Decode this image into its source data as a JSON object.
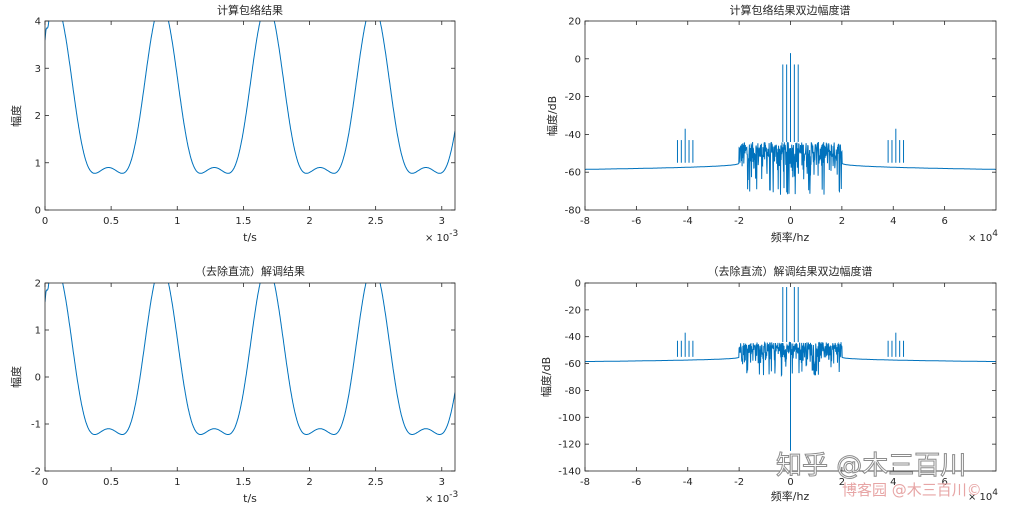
{
  "chart_data": [
    {
      "type": "line",
      "title": "计算包络结果",
      "xlabel": "t/s",
      "ylabel": "幅度",
      "x_exponent_label": "× 10",
      "x_exponent": "-3",
      "xlim": [
        0,
        3.1
      ],
      "ylim": [
        0,
        4
      ],
      "xticks": [
        0,
        0.5,
        1,
        1.5,
        2,
        2.5,
        3
      ],
      "yticks": [
        0,
        1,
        2,
        3,
        4
      ],
      "signal": {
        "offset": 2.0,
        "main_amp": 1.73,
        "main_period_ms": 0.8,
        "peak_ms": 0.88,
        "second_amp": 0.63,
        "second_period_ms": 0.4
      },
      "line_color": "#0072BD"
    },
    {
      "type": "line",
      "title": "计算包络结果双边幅度谱",
      "xlabel": "频率/hz",
      "ylabel": "幅度/dB",
      "x_exponent_label": "× 10",
      "x_exponent": "4",
      "xlim": [
        -8,
        8
      ],
      "ylim": [
        -80,
        20
      ],
      "xticks": [
        -8,
        -6,
        -4,
        -2,
        0,
        2,
        4,
        6
      ],
      "yticks": [
        -80,
        -60,
        -40,
        -20,
        0,
        20
      ],
      "spikes": [
        {
          "x": 0,
          "y": 3
        },
        {
          "x": -0.15,
          "y": -3
        },
        {
          "x": 0.15,
          "y": -3
        },
        {
          "x": -0.3,
          "y": -3
        },
        {
          "x": 0.3,
          "y": -3
        },
        {
          "x": -4.1,
          "y": -37
        },
        {
          "x": -4.25,
          "y": -43
        },
        {
          "x": -3.95,
          "y": -43
        },
        {
          "x": -4.4,
          "y": -43
        },
        {
          "x": -3.8,
          "y": -43
        },
        {
          "x": 4.1,
          "y": -37
        },
        {
          "x": 3.95,
          "y": -43
        },
        {
          "x": 4.25,
          "y": -43
        },
        {
          "x": 3.8,
          "y": -43
        },
        {
          "x": 4.4,
          "y": -43
        }
      ],
      "baseline": {
        "edge_level": -58.5,
        "inner_level": -55,
        "noise_top": -44,
        "noise_bottom": -68,
        "band_edge": 2
      },
      "line_color": "#0072BD"
    },
    {
      "type": "line",
      "title": "（去除直流）解调结果",
      "xlabel": "t/s",
      "ylabel": "幅度",
      "x_exponent_label": "× 10",
      "x_exponent": "-3",
      "xlim": [
        0,
        3.1
      ],
      "ylim": [
        -2,
        2
      ],
      "xticks": [
        0,
        0.5,
        1,
        1.5,
        2,
        2.5,
        3
      ],
      "yticks": [
        -2,
        -1,
        0,
        1,
        2
      ],
      "signal": {
        "offset": 0.0,
        "main_amp": 1.73,
        "main_period_ms": 0.8,
        "peak_ms": 0.88,
        "second_amp": 0.63,
        "second_period_ms": 0.4
      },
      "line_color": "#0072BD"
    },
    {
      "type": "line",
      "title": "（去除直流）解调结果双边幅度谱",
      "xlabel": "频率/hz",
      "ylabel": "幅度/dB",
      "x_exponent_label": "× 10",
      "x_exponent": "4",
      "xlim": [
        -8,
        8
      ],
      "ylim": [
        -140,
        0
      ],
      "xticks": [
        -8,
        -6,
        -4,
        -2,
        0,
        2,
        4,
        6
      ],
      "yticks": [
        -140,
        -120,
        -100,
        -80,
        -60,
        -40,
        -20,
        0
      ],
      "spikes": [
        {
          "x": -0.15,
          "y": -3
        },
        {
          "x": 0.15,
          "y": -3
        },
        {
          "x": -0.3,
          "y": -3
        },
        {
          "x": 0.3,
          "y": -3
        },
        {
          "x": 0,
          "y": -125
        },
        {
          "x": -4.1,
          "y": -37
        },
        {
          "x": -4.25,
          "y": -43
        },
        {
          "x": -3.95,
          "y": -43
        },
        {
          "x": -4.4,
          "y": -43
        },
        {
          "x": -3.8,
          "y": -43
        },
        {
          "x": 4.1,
          "y": -37
        },
        {
          "x": 3.95,
          "y": -43
        },
        {
          "x": 4.25,
          "y": -43
        },
        {
          "x": 3.8,
          "y": -43
        },
        {
          "x": 4.4,
          "y": -43
        }
      ],
      "baseline": {
        "edge_level": -58.5,
        "inner_level": -55,
        "noise_top": -44,
        "noise_bottom": -65,
        "band_edge": 2
      },
      "line_color": "#0072BD"
    }
  ],
  "watermarks": {
    "zhihu": "知乎 @木三百川",
    "cnblogs": "博客园 @木三百川©"
  }
}
